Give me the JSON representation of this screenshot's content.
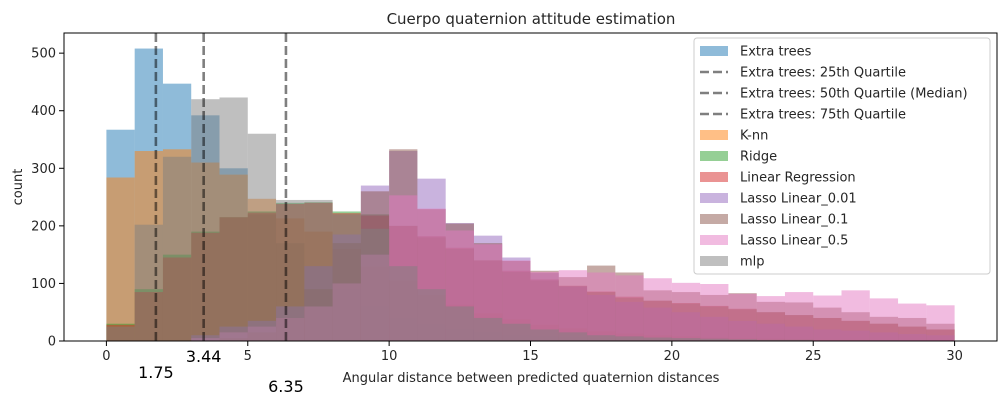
{
  "chart_data": {
    "type": "histogram",
    "title": "Cuerpo quaternion attitude estimation",
    "xlabel": "Angular distance between predicted quaternion distances",
    "ylabel": "count",
    "xlim": [
      -1.5,
      31.5
    ],
    "ylim": [
      0,
      535
    ],
    "xticks": [
      0,
      5,
      10,
      15,
      20,
      25,
      30
    ],
    "yticks": [
      0,
      100,
      200,
      300,
      400,
      500
    ],
    "bin_width": 1,
    "bins_start": 0,
    "legend_position": "top-right",
    "series": [
      {
        "name": "Extra trees",
        "color": "#1f77b4",
        "values": [
          367,
          508,
          447,
          392,
          300,
          220,
          170,
          130,
          90,
          60,
          40,
          28,
          20,
          15,
          10,
          8,
          6,
          5,
          4,
          3,
          2,
          2,
          1,
          1,
          1,
          0,
          0,
          0,
          0,
          0
        ]
      },
      {
        "name": "K-nn",
        "color": "#ff7f0e",
        "values": [
          284,
          330,
          333,
          310,
          289,
          247,
          213,
          190,
          160,
          130,
          105,
          80,
          63,
          48,
          38,
          28,
          22,
          17,
          13,
          10,
          8,
          6,
          5,
          4,
          3,
          2,
          2,
          1,
          1,
          1
        ]
      },
      {
        "name": "Ridge",
        "color": "#2ca02c",
        "values": [
          30,
          90,
          150,
          190,
          215,
          225,
          240,
          241,
          225,
          220,
          200,
          180,
          160,
          140,
          120,
          105,
          95,
          85,
          75,
          70,
          65,
          60,
          55,
          50,
          45,
          40,
          35,
          30,
          25,
          20
        ]
      },
      {
        "name": "Linear Regression",
        "color": "#d62728",
        "values": [
          28,
          85,
          145,
          188,
          215,
          223,
          238,
          240,
          222,
          218,
          200,
          182,
          162,
          140,
          122,
          107,
          96,
          86,
          77,
          70,
          66,
          61,
          56,
          50,
          45,
          40,
          35,
          30,
          25,
          20
        ]
      },
      {
        "name": "Lasso Linear_0.01",
        "color": "#9467bd",
        "values": [
          0,
          0,
          0,
          10,
          25,
          35,
          60,
          130,
          185,
          270,
          330,
          282,
          205,
          183,
          145,
          118,
          95,
          80,
          68,
          58,
          50,
          42,
          35,
          30,
          25,
          20,
          18,
          15,
          12,
          10
        ]
      },
      {
        "name": "Lasso Linear_0.1",
        "color": "#8c564b",
        "values": [
          0,
          0,
          0,
          0,
          5,
          15,
          40,
          90,
          170,
          260,
          333,
          229,
          204,
          170,
          139,
          122,
          111,
          131,
          119,
          88,
          85,
          80,
          83,
          68,
          67,
          58,
          50,
          42,
          40,
          30
        ]
      },
      {
        "name": "Lasso Linear_0.5",
        "color": "#e377c2",
        "values": [
          0,
          0,
          0,
          5,
          15,
          25,
          40,
          60,
          100,
          150,
          253,
          230,
          192,
          168,
          140,
          120,
          123,
          119,
          114,
          109,
          101,
          99,
          82,
          78,
          85,
          79,
          88,
          74,
          65,
          62
        ]
      },
      {
        "name": "mlp",
        "color": "#7f7f7f",
        "values": [
          25,
          202,
          320,
          420,
          423,
          360,
          245,
          245,
          220,
          195,
          130,
          90,
          60,
          40,
          30,
          20,
          15,
          10,
          8,
          6,
          5,
          4,
          3,
          2,
          2,
          1,
          1,
          1,
          0,
          0
        ]
      }
    ],
    "quartiles": [
      {
        "name": "Extra trees: 25th Quartile",
        "value": 1.75,
        "label": "1.75"
      },
      {
        "name": "Extra trees: 50th Quartile (Median)",
        "value": 3.44,
        "label": "3.44"
      },
      {
        "name": "Extra trees: 75th Quartile",
        "value": 6.35,
        "label": "6.35"
      }
    ],
    "legend_order": [
      "Extra trees",
      "Extra trees: 25th Quartile",
      "Extra trees: 50th Quartile (Median)",
      "Extra trees: 75th Quartile",
      "K-nn",
      "Ridge",
      "Linear Regression",
      "Lasso Linear_0.01",
      "Lasso Linear_0.1",
      "Lasso Linear_0.5",
      "mlp"
    ]
  }
}
